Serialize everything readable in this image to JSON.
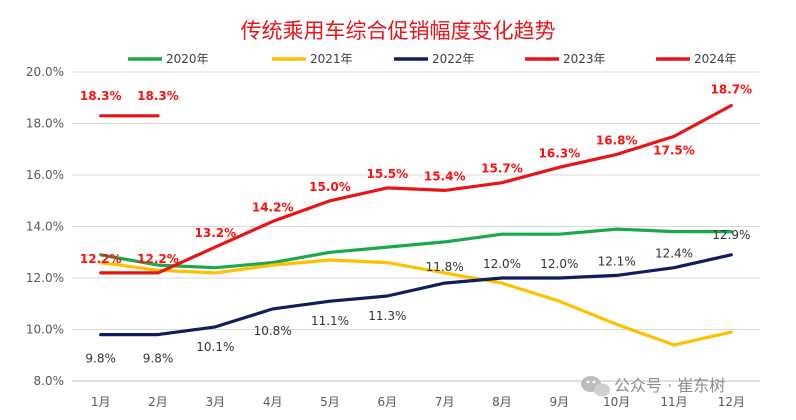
{
  "chart_data": {
    "type": "line",
    "title": "传统乘用车综合促销幅度变化趋势",
    "categories": [
      "1月",
      "2月",
      "3月",
      "4月",
      "5月",
      "6月",
      "7月",
      "8月",
      "9月",
      "10月",
      "11月",
      "12月"
    ],
    "y_tick_labels": [
      "8.0%",
      "10.0%",
      "12.0%",
      "14.0%",
      "16.0%",
      "18.0%",
      "20.0%"
    ],
    "ylim": [
      8,
      20
    ],
    "grid": true,
    "legend_position": "top",
    "series": [
      {
        "name": "2020年",
        "color": "#1aa84c",
        "values": [
          12.9,
          12.5,
          12.4,
          12.6,
          13.0,
          13.2,
          13.4,
          13.7,
          13.7,
          13.9,
          13.8,
          13.8
        ]
      },
      {
        "name": "2021年",
        "color": "#ffc000",
        "values": [
          12.6,
          12.3,
          12.2,
          12.5,
          12.7,
          12.6,
          12.2,
          11.8,
          11.1,
          10.2,
          9.4,
          9.9
        ]
      },
      {
        "name": "2022年",
        "color": "#0e1f5b",
        "values": [
          9.8,
          9.8,
          10.1,
          10.8,
          11.1,
          11.3,
          11.8,
          12.0,
          12.0,
          12.1,
          12.4,
          12.9
        ],
        "labels": [
          "9.8%",
          "9.8%",
          "10.1%",
          "10.8%",
          "11.1%",
          "11.3%",
          "11.8%",
          "12.0%",
          "12.0%",
          "12.1%",
          "12.4%",
          "12.9%"
        ]
      },
      {
        "name": "2023年",
        "color": "#e81416",
        "values": [
          12.2,
          12.2,
          13.2,
          14.2,
          15.0,
          15.5,
          15.4,
          15.7,
          16.3,
          16.8,
          17.5,
          18.7
        ],
        "labels": [
          "12.2%",
          "12.2%",
          "13.2%",
          "14.2%",
          "15.0%",
          "15.5%",
          "15.4%",
          "15.7%",
          "16.3%",
          "16.8%",
          "17.5%",
          "18.7%"
        ]
      },
      {
        "name": "2024年",
        "color": "#e81416",
        "values": [
          18.3,
          18.3,
          null,
          null,
          null,
          null,
          null,
          null,
          null,
          null,
          null,
          null
        ],
        "labels": [
          "18.3%",
          "18.3%"
        ]
      }
    ]
  },
  "watermark": {
    "text": "公众号 · 崔东树",
    "icon": "wechat-icon"
  }
}
